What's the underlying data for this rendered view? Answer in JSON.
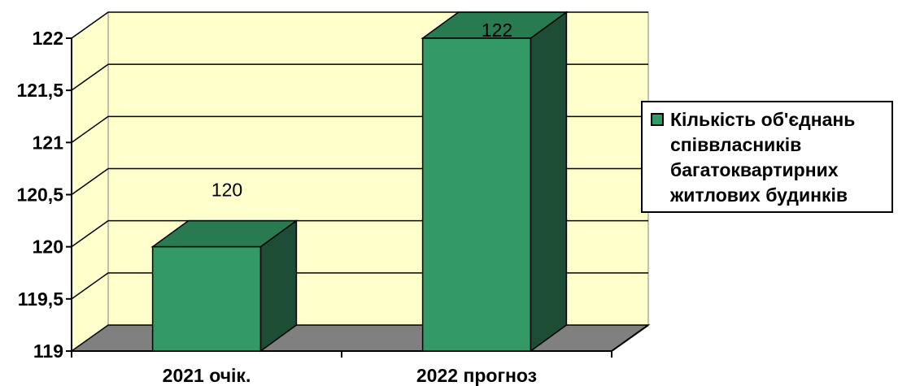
{
  "chart_data": {
    "type": "bar",
    "categories": [
      "2021 очік.",
      "2022 прогноз"
    ],
    "series": [
      {
        "name": "Кількість об'єднань співвласників багатоквартирних житлових будинків",
        "values": [
          120,
          122
        ]
      }
    ],
    "data_labels": [
      "120",
      "122"
    ],
    "ylim": [
      119,
      122
    ],
    "yticks": [
      119,
      119.5,
      120,
      120.5,
      121,
      121.5,
      122
    ],
    "ytick_labels": [
      "119",
      "119,5",
      "120",
      "120,5",
      "121",
      "121,5",
      "122"
    ],
    "grid": true,
    "legend_position": "right",
    "three_d": true,
    "colors": {
      "bar_front": "#339966",
      "bar_top": "#287a51",
      "bar_side": "#1e4d36",
      "wall": "#ffffcc",
      "floor": "#808080"
    }
  },
  "legend": {
    "label": "Кількість об'єднань співвласників багатоквартирних житлових будинків"
  }
}
